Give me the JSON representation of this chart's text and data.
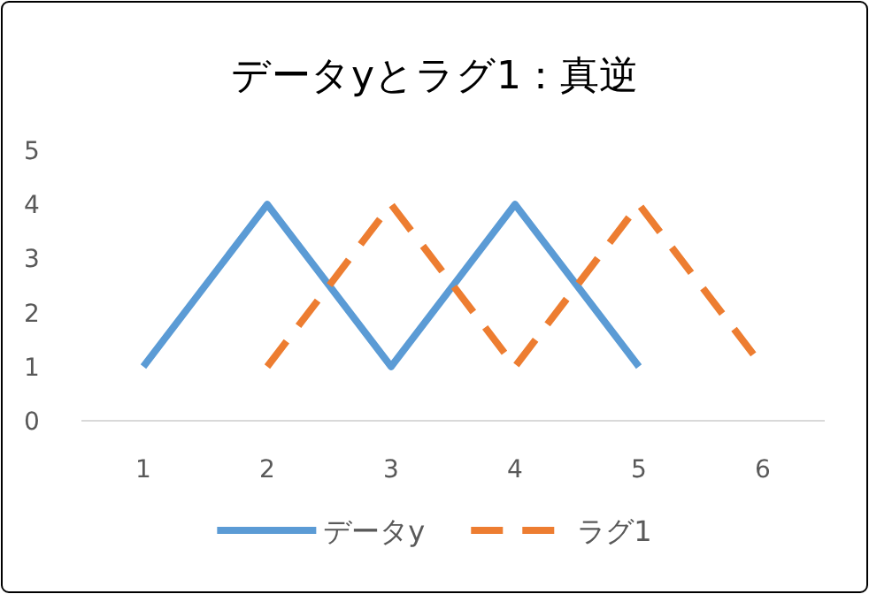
{
  "chart_data": {
    "type": "line",
    "title": "データyとラグ1：真逆",
    "categories": [
      "1",
      "2",
      "3",
      "4",
      "5",
      "6"
    ],
    "ylim": [
      0,
      5
    ],
    "yticks": [
      0,
      1,
      2,
      3,
      4,
      5
    ],
    "grid": false,
    "legend": "bottom",
    "marker": "none",
    "series": [
      {
        "name": "データy",
        "color": "#5b9bd5",
        "line_style": "solid",
        "values": [
          1,
          4,
          1,
          4,
          1,
          null
        ]
      },
      {
        "name": "ラグ1",
        "color": "#ed7d31",
        "line_style": "dashed",
        "values": [
          null,
          1,
          4,
          1,
          4,
          1
        ]
      }
    ]
  }
}
